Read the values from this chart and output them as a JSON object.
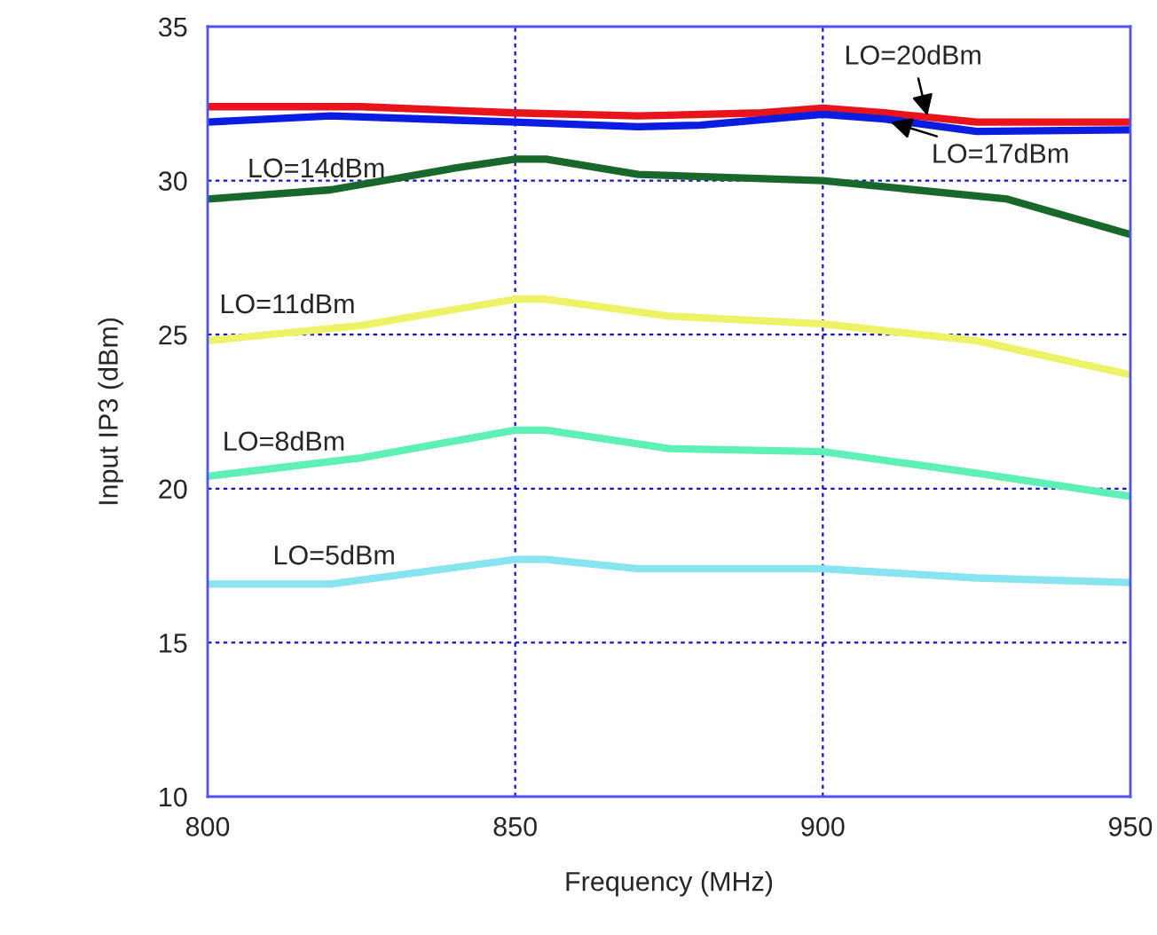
{
  "chart_data": {
    "type": "line",
    "xlabel": "Frequency (MHz)",
    "ylabel": "Input IP3 (dBm)",
    "xlim": [
      800,
      950
    ],
    "xticks": [
      800,
      850,
      900,
      950
    ],
    "ylim": [
      10,
      35
    ],
    "yticks": [
      10,
      15,
      20,
      25,
      30,
      35
    ],
    "grid": true,
    "line_style": "solid",
    "series": [
      {
        "color": "#e8141c",
        "x": [
          800,
          825,
          850,
          870,
          890,
          900,
          910,
          925,
          950
        ],
        "values": [
          32.4,
          32.4,
          32.2,
          32.1,
          32.2,
          32.35,
          32.2,
          31.9,
          31.9
        ]
      },
      {
        "color": "#0a1de0",
        "x": [
          800,
          820,
          850,
          870,
          880,
          900,
          910,
          925,
          950
        ],
        "values": [
          31.9,
          32.1,
          31.9,
          31.75,
          31.8,
          32.15,
          32.0,
          31.6,
          31.65
        ]
      },
      {
        "color": "#17682a",
        "x": [
          800,
          820,
          840,
          850,
          855,
          870,
          900,
          930,
          950
        ],
        "values": [
          29.4,
          29.7,
          30.4,
          30.7,
          30.7,
          30.2,
          30.0,
          29.4,
          28.25
        ]
      },
      {
        "color": "#eef266",
        "x": [
          800,
          825,
          850,
          855,
          875,
          900,
          925,
          950
        ],
        "values": [
          24.8,
          25.3,
          26.15,
          26.15,
          25.6,
          25.35,
          24.8,
          23.7
        ]
      },
      {
        "color": "#5ff0b8",
        "x": [
          800,
          825,
          850,
          855,
          875,
          900,
          925,
          950
        ],
        "values": [
          20.4,
          21.0,
          21.9,
          21.9,
          21.3,
          21.2,
          20.5,
          19.75
        ]
      },
      {
        "color": "#88e4ee",
        "x": [
          800,
          820,
          850,
          855,
          870,
          900,
          925,
          950
        ],
        "values": [
          16.9,
          16.9,
          17.7,
          17.7,
          17.4,
          17.4,
          17.1,
          16.95
        ]
      }
    ],
    "annotations": [
      {
        "text": "LO=20dBm",
        "x": 917,
        "y": 32.1
      },
      {
        "text": "LO=17dBm",
        "x": 911,
        "y": 31.9
      },
      {
        "text": "LO=14dBm",
        "x": 820,
        "y": 29.7
      },
      {
        "text": "LO=11dBm",
        "x": 815,
        "y": 25.0
      },
      {
        "text": "LO=8dBm",
        "x": 815,
        "y": 20.6
      },
      {
        "text": "LO=5dBm",
        "x": 820,
        "y": 16.9
      }
    ]
  }
}
